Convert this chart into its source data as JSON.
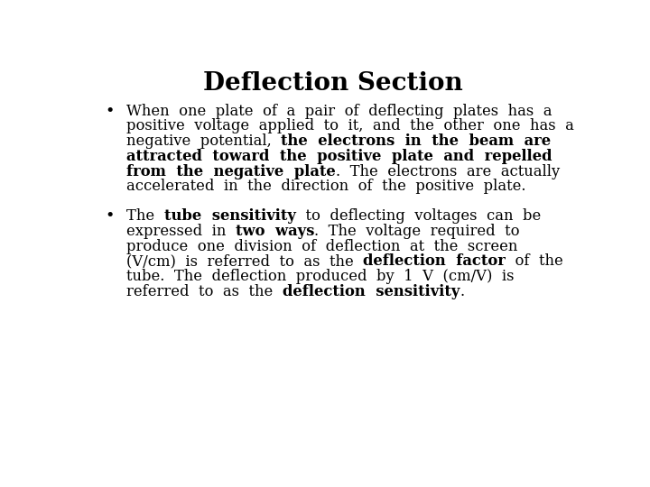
{
  "title": "Deflection Section",
  "background_color": "#ffffff",
  "text_color": "#000000",
  "title_fontsize": 20,
  "body_fontsize": 11.8,
  "body_fontfamily": "DejaVu Serif",
  "title_fontfamily": "DejaVu Serif",
  "bullet1_lines": [
    [
      {
        "text": "When  one  plate  of  a  pair  of  deflecting  plates  has  a",
        "bold": false
      }
    ],
    [
      {
        "text": "positive  voltage  applied  to  it,  and  the  other  one  has  a",
        "bold": false
      }
    ],
    [
      {
        "text": "negative  potential,  ",
        "bold": false
      },
      {
        "text": "the  electrons  in  the  beam  are",
        "bold": true
      }
    ],
    [
      {
        "text": "attracted  toward  the  positive  plate  and  repelled",
        "bold": true
      }
    ],
    [
      {
        "text": "from  the  negative  plate",
        "bold": true
      },
      {
        "text": ".  The  electrons  are  actually",
        "bold": false
      }
    ],
    [
      {
        "text": "accelerated  in  the  direction  of  the  positive  plate.",
        "bold": false
      }
    ]
  ],
  "bullet2_lines": [
    [
      {
        "text": "The  ",
        "bold": false
      },
      {
        "text": "tube  sensitivity",
        "bold": true
      },
      {
        "text": "  to  deflecting  voltages  can  be",
        "bold": false
      }
    ],
    [
      {
        "text": "expressed  in  ",
        "bold": false
      },
      {
        "text": "two  ways",
        "bold": true
      },
      {
        "text": ".  The  voltage  required  to",
        "bold": false
      }
    ],
    [
      {
        "text": "produce  one  division  of  deflection  at  the  screen",
        "bold": false
      }
    ],
    [
      {
        "text": "(V/cm)  is  referred  to  as  the  ",
        "bold": false
      },
      {
        "text": "deflection  factor",
        "bold": true
      },
      {
        "text": "  of  the",
        "bold": false
      }
    ],
    [
      {
        "text": "tube.  The  deflection  produced  by  1  V  (cm/V)  is",
        "bold": false
      }
    ],
    [
      {
        "text": "referred  to  as  the  ",
        "bold": false
      },
      {
        "text": "deflection  sensitivity",
        "bold": true
      },
      {
        "text": ".",
        "bold": false
      }
    ]
  ]
}
